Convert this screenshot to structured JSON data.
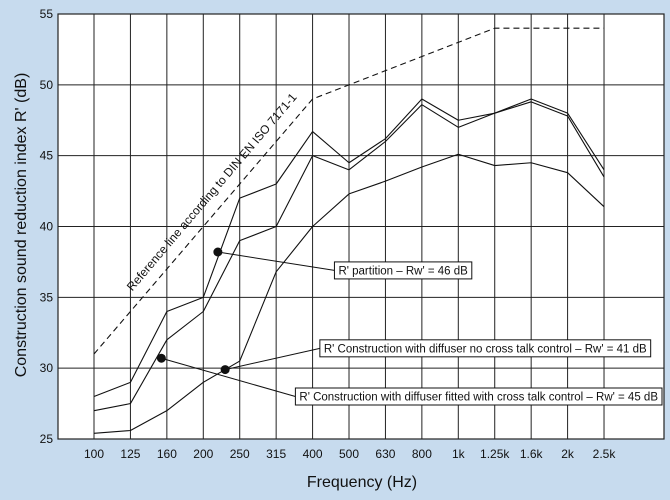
{
  "chart_data": {
    "type": "line",
    "xlabel": "Frequency (Hz)",
    "ylabel": "Construction sound reduction index R' (dB)",
    "ylim": [
      25,
      55
    ],
    "y_ticks": [
      25,
      30,
      35,
      40,
      45,
      50,
      55
    ],
    "grid": true,
    "categories": [
      "100",
      "125",
      "160",
      "200",
      "250",
      "315",
      "400",
      "500",
      "630",
      "800",
      "1k",
      "1.25k",
      "1.6k",
      "2k",
      "2.5k"
    ],
    "series": [
      {
        "name": "Reference line according to DIN EN ISO 7171-1",
        "style": "dashed",
        "values": [
          31,
          34,
          37,
          40,
          43,
          46,
          49,
          50,
          51,
          52,
          53,
          54,
          54,
          54,
          54
        ]
      },
      {
        "name": "R' partition – Rw' = 46 dB",
        "style": "solid",
        "values": [
          28,
          29,
          34,
          35,
          42,
          43,
          46.7,
          44.5,
          46.2,
          49,
          47.5,
          48,
          49,
          48,
          44
        ]
      },
      {
        "name": "R' Construction with diffuser fitted with cross talk control – Rw' = 45 dB",
        "style": "solid",
        "values": [
          27,
          27.5,
          32,
          34,
          39,
          40,
          45,
          44,
          46,
          48.6,
          47,
          48,
          48.8,
          47.8,
          43.5
        ]
      },
      {
        "name": "R' Construction with diffuser no cross talk control – Rw' = 41 dB",
        "style": "solid",
        "values": [
          25.4,
          25.6,
          27,
          29,
          30.5,
          36.8,
          40,
          42.3,
          43.2,
          44.2,
          45.1,
          44.3,
          44.5,
          43.8,
          41.4
        ]
      }
    ],
    "annotations": [
      {
        "text": "Reference line according to DIN EN ISO 7171-1",
        "series": 0
      },
      {
        "text": "R' partition – Rw' = 46 dB",
        "series": 1,
        "point": {
          "x": 3.4,
          "y": 38.2
        },
        "box_at": {
          "x": 6.6,
          "y": 36.9
        }
      },
      {
        "text": "R' Construction with diffuser no cross talk control – Rw' = 41 dB",
        "series": 3,
        "point": {
          "x": 3.6,
          "y": 29.9
        },
        "box_at": {
          "x": 6.2,
          "y": 31.4
        }
      },
      {
        "text": "R' Construction with diffuser fitted with cross talk control – Rw' = 45 dB",
        "series": 2,
        "point": {
          "x": 1.85,
          "y": 30.7
        },
        "box_at": {
          "x": 5.9,
          "y": 28.0
        }
      }
    ],
    "colors": {
      "background": "#c7dbee",
      "plot_area": "#ffffff",
      "line": "#111111",
      "grid": "#222222"
    }
  }
}
